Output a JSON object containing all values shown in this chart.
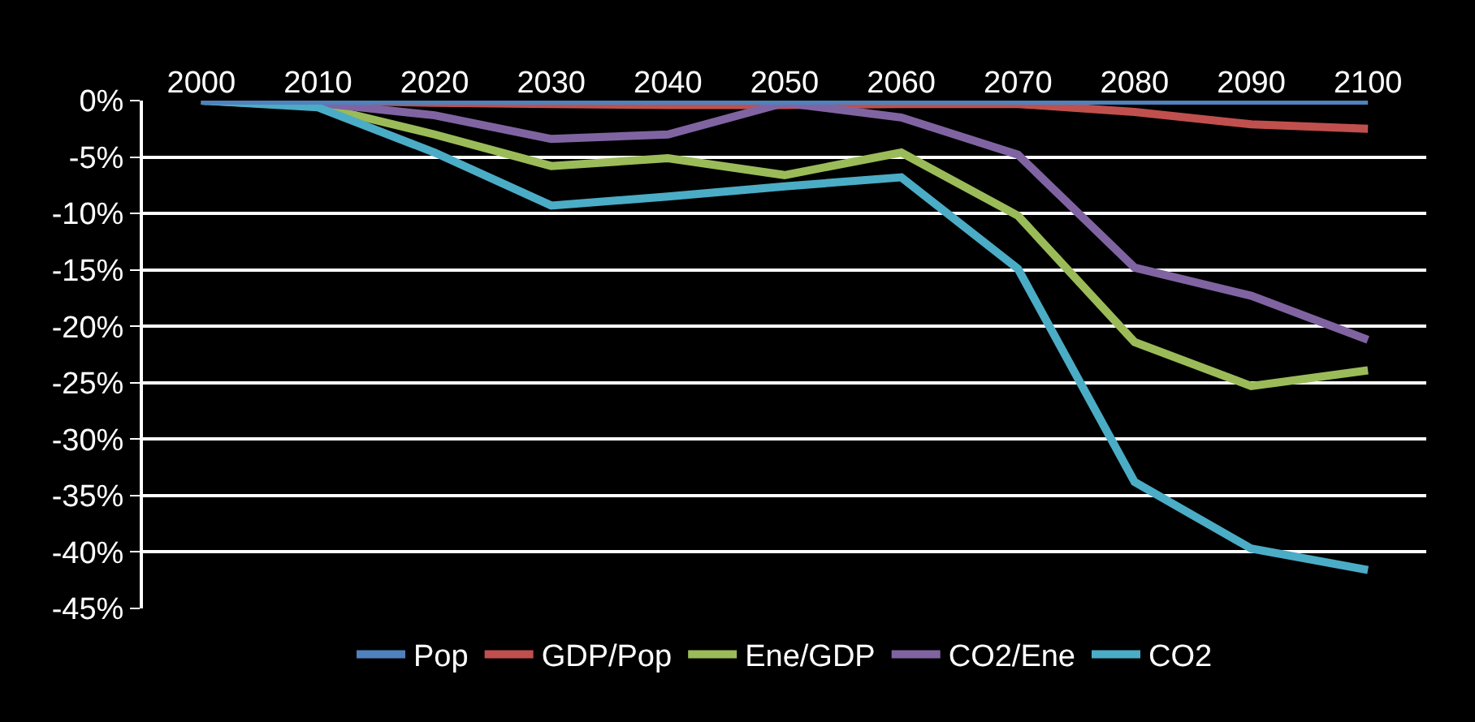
{
  "chart_data": {
    "type": "line",
    "categories": [
      "2000",
      "2010",
      "2020",
      "2030",
      "2040",
      "2050",
      "2060",
      "2070",
      "2080",
      "2090",
      "2100"
    ],
    "series": [
      {
        "name": "Pop",
        "color": "#4f81bd",
        "values": [
          0,
          0,
          0,
          0,
          0,
          0,
          0,
          0,
          0,
          0,
          0
        ]
      },
      {
        "name": "GDP/Pop",
        "color": "#c0504d",
        "values": [
          0,
          0,
          -0.2,
          -0.3,
          -0.4,
          -0.4,
          -0.3,
          -0.3,
          -1.0,
          -2.1,
          -2.5
        ]
      },
      {
        "name": "Ene/GDP",
        "color": "#9bbb59",
        "values": [
          0,
          -0.5,
          -3.0,
          -5.8,
          -5.1,
          -6.6,
          -4.6,
          -10.2,
          -21.4,
          -25.3,
          -23.9
        ]
      },
      {
        "name": "CO2/Ene",
        "color": "#8064a2",
        "values": [
          0,
          -0.2,
          -1.3,
          -3.4,
          -3.0,
          -0.2,
          -1.5,
          -4.8,
          -14.8,
          -17.3,
          -21.2
        ]
      },
      {
        "name": "CO2",
        "color": "#4bacc6",
        "values": [
          0,
          -0.6,
          -4.6,
          -9.3,
          -8.5,
          -7.6,
          -6.8,
          -14.9,
          -33.8,
          -39.7,
          -41.6
        ]
      }
    ],
    "ylim": [
      -45,
      0
    ],
    "yticks": [
      {
        "value": 0,
        "label": "0%"
      },
      {
        "value": -5,
        "label": "-5%"
      },
      {
        "value": -10,
        "label": "-10%"
      },
      {
        "value": -15,
        "label": "-15%"
      },
      {
        "value": -20,
        "label": "-20%"
      },
      {
        "value": -25,
        "label": "-25%"
      },
      {
        "value": -30,
        "label": "-30%"
      },
      {
        "value": -35,
        "label": "-35%"
      },
      {
        "value": -40,
        "label": "-40%"
      },
      {
        "value": -45,
        "label": "-45%"
      }
    ],
    "grid": "y",
    "legend": "bottom",
    "marker": "none",
    "line_style": "solid"
  }
}
